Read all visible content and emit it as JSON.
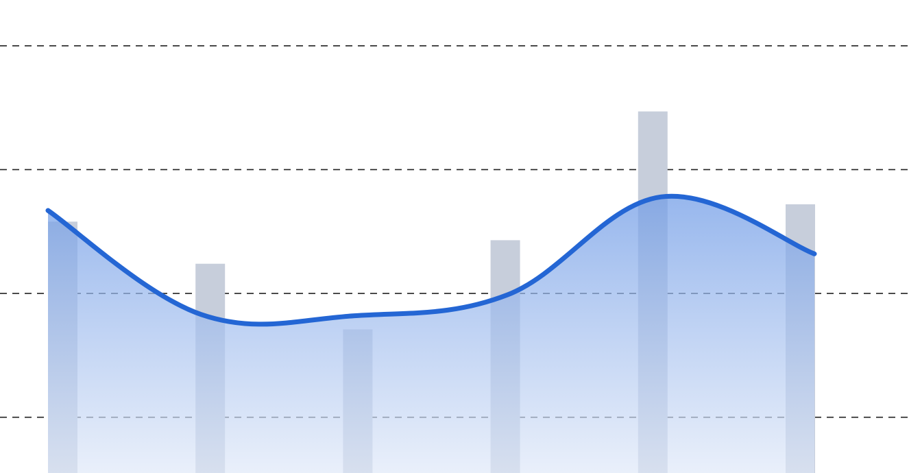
{
  "chart_data": {
    "type": "bar-line",
    "categories": [
      null,
      null,
      null,
      null,
      null,
      null
    ],
    "series": [
      {
        "type": "bar",
        "color": "#c7cedb",
        "values": [
          25.8,
          22.4,
          17.1,
          24.3,
          34.7,
          27.2
        ]
      },
      {
        "type": "area-line",
        "color": "#2466d4",
        "values": [
          26.7,
          18.3,
          18.2,
          19.9,
          27.8,
          23.2
        ]
      }
    ],
    "ylim": [
      5.5,
      43.7
    ],
    "yticks": [
      10,
      20,
      30,
      40
    ],
    "grid": true
  }
}
